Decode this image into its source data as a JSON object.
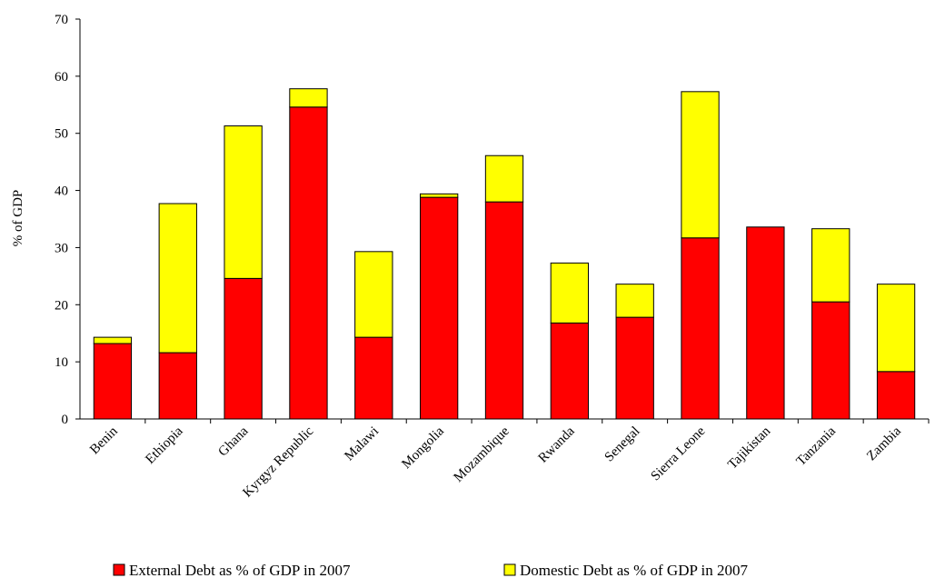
{
  "chart_data": {
    "type": "bar",
    "stacked": true,
    "title": "",
    "xlabel": "",
    "ylabel": "% of GDP",
    "ylim": [
      0,
      70
    ],
    "yticks": [
      "0",
      "10",
      "20",
      "30",
      "40",
      "50",
      "60",
      "70"
    ],
    "grid": false,
    "legend_position": "bottom",
    "categories": [
      "Benin",
      "Ethiopia",
      "Ghana",
      "Kyrgyz Republic",
      "Malawi",
      "Mongolia",
      "Mozambique",
      "Rwanda",
      "Senegal",
      "Sierra Leone",
      "Tajikistan",
      "Tanzania",
      "Zambia"
    ],
    "series": [
      {
        "name": "External Debt as % of GDP in 2007",
        "color": "#ff0000",
        "values": [
          13.2,
          11.6,
          24.6,
          54.6,
          14.3,
          38.8,
          38.0,
          16.8,
          17.8,
          31.7,
          33.6,
          20.5,
          8.3
        ]
      },
      {
        "name": "Domestic Debt as % of GDP in 2007",
        "color": "#ffff00",
        "values": [
          1.1,
          26.1,
          26.7,
          3.2,
          15.0,
          0.6,
          8.1,
          10.5,
          5.8,
          25.6,
          0.0,
          12.8,
          15.3
        ]
      }
    ]
  }
}
